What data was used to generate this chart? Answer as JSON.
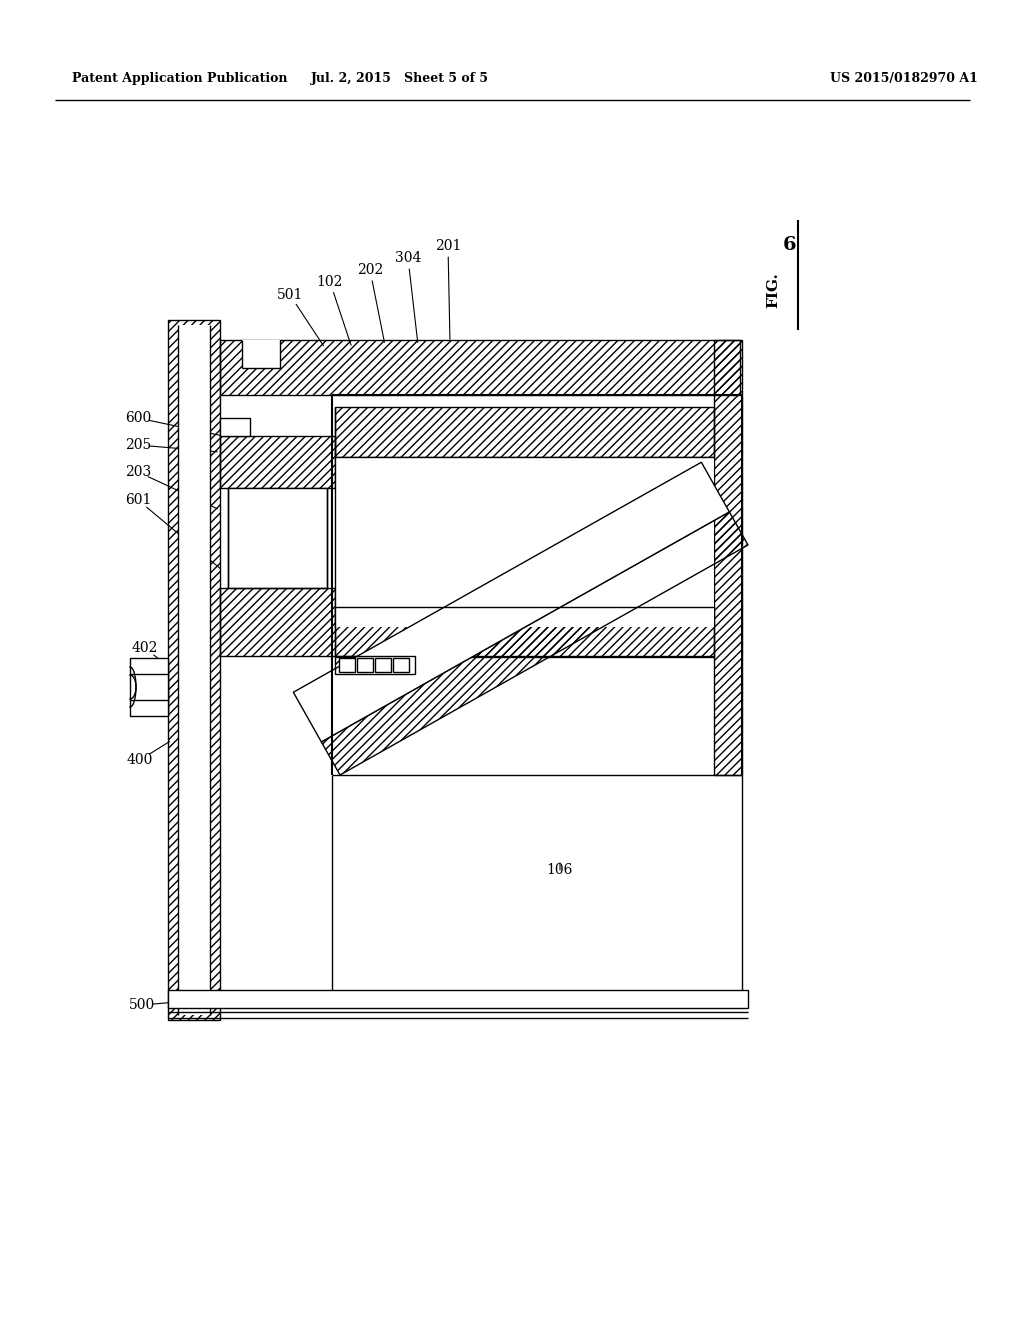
{
  "background_color": "#ffffff",
  "line_color": "#000000",
  "header_left": "Patent Application Publication",
  "header_mid": "Jul. 2, 2015   Sheet 5 of 5",
  "header_right": "US 2015/0182970 A1",
  "fig_label": "FIG. 6"
}
